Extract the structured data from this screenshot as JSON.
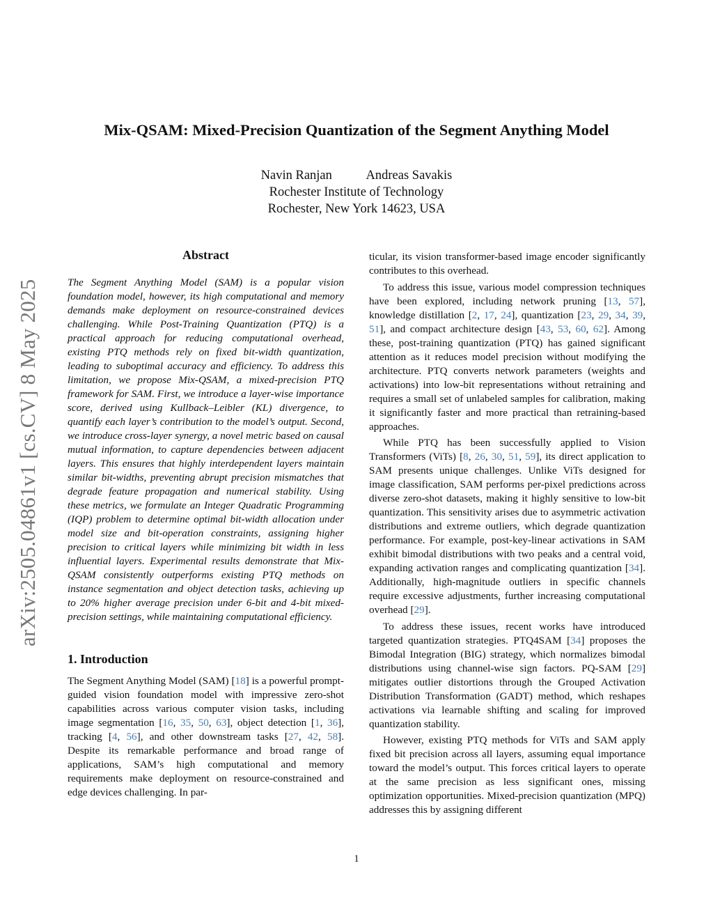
{
  "side_label": "arXiv:2505.04861v1  [cs.CV]  8 May 2025",
  "title": "Mix-QSAM: Mixed-Precision Quantization of the Segment Anything Model",
  "authors": {
    "names": [
      "Navin Ranjan",
      "Andreas Savakis"
    ],
    "affiliation": "Rochester Institute of Technology",
    "address": "Rochester, New York 14623, USA"
  },
  "abstract": {
    "heading": "Abstract",
    "text": "The Segment Anything Model (SAM) is a popular vision foundation model, however, its high computational and memory demands make deployment on resource-constrained devices challenging. While Post-Training Quantization (PTQ) is a practical approach for reducing computational overhead, existing PTQ methods rely on fixed bit-width quantization, leading to suboptimal accuracy and efficiency. To address this limitation, we propose Mix-QSAM, a mixed-precision PTQ framework for SAM. First, we introduce a layer-wise importance score, derived using Kullback–Leibler (KL) divergence, to quantify each layer’s contribution to the model’s output. Second, we introduce cross-layer synergy, a novel metric based on causal mutual information, to capture dependencies between adjacent layers. This ensures that highly interdependent layers maintain similar bit-widths, preventing abrupt precision mismatches that degrade feature propagation and numerical stability. Using these metrics, we formulate an Integer Quadratic Programming (IQP) problem to determine optimal bit-width allocation under model size and bit-operation constraints, assigning higher precision to critical layers while minimizing bit width in less influential layers. Experimental results demonstrate that Mix-QSAM consistently outperforms existing PTQ methods on instance segmentation and object detection tasks, achieving up to 20% higher average precision under 6-bit and 4-bit mixed-precision settings, while maintaining computational efficiency."
  },
  "introduction": {
    "heading": "1. Introduction",
    "left_paragraphs": [
      "The Segment Anything Model (SAM) [18] is a powerful prompt-guided vision foundation model with impressive zero-shot capabilities across various computer vision tasks, including image segmentation [16, 35, 50, 63], object detection [1, 36], tracking [4, 56], and other downstream tasks [27, 42, 58]. Despite its remarkable performance and broad range of applications, SAM’s high computational and memory requirements make deployment on resource-constrained and edge devices challenging. In par-"
    ],
    "right_paragraphs": [
      "ticular, its vision transformer-based image encoder significantly contributes to this overhead.",
      "To address this issue, various model compression techniques have been explored, including network pruning [13, 57], knowledge distillation [2, 17, 24], quantization [23, 29, 34, 39, 51], and compact architecture design [43, 53, 60, 62]. Among these, post-training quantization (PTQ) has gained significant attention as it reduces model precision without modifying the architecture. PTQ converts network parameters (weights and activations) into low-bit representations without retraining and requires a small set of unlabeled samples for calibration, making it significantly faster and more practical than retraining-based approaches.",
      "While PTQ has been successfully applied to Vision Transformers (ViTs) [8, 26, 30, 51, 59], its direct application to SAM presents unique challenges. Unlike ViTs designed for image classification, SAM performs per-pixel predictions across diverse zero-shot datasets, making it highly sensitive to low-bit quantization. This sensitivity arises due to asymmetric activation distributions and extreme outliers, which degrade quantization performance. For example, post-key-linear activations in SAM exhibit bimodal distributions with two peaks and a central void, expanding activation ranges and complicating quantization [34]. Additionally, high-magnitude outliers in specific channels require excessive adjustments, further increasing computational overhead [29].",
      "To address these issues, recent works have introduced targeted quantization strategies. PTQ4SAM [34] proposes the Bimodal Integration (BIG) strategy, which normalizes bimodal distributions using channel-wise sign factors. PQ-SAM [29] mitigates outlier distortions through the Grouped Activation Distribution Transformation (GADT) method, which reshapes activations via learnable shifting and scaling for improved quantization stability.",
      "However, existing PTQ methods for ViTs and SAM apply fixed bit precision across all layers, assuming equal importance toward the model’s output. This forces critical layers to operate at the same precision as less significant ones, missing optimization opportunities. Mixed-precision quantization (MPQ) addresses this by assigning different"
    ]
  },
  "page_number": "1",
  "colors": {
    "citation": "#4a7fb5",
    "side_label": "#777777",
    "text": "#111111"
  }
}
